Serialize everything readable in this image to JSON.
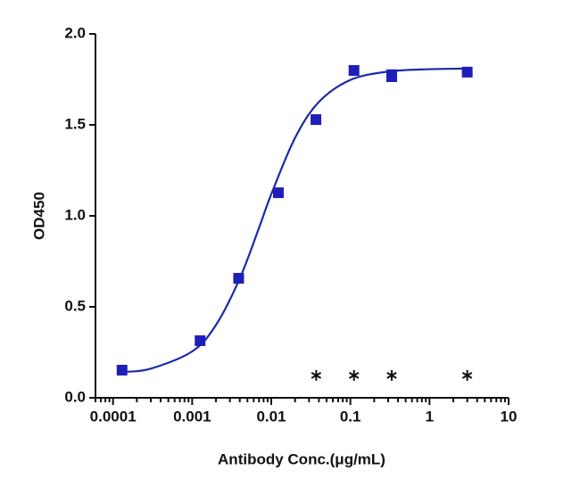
{
  "chart_data": {
    "type": "scatter",
    "xlabel": "Antibody Conc.(μg/mL)",
    "ylabel": "OD450",
    "xscale": "log",
    "xlim": [
      6e-05,
      10
    ],
    "xticks": [
      0.0001,
      0.001,
      0.01,
      0.1,
      1,
      10
    ],
    "ylim": [
      0,
      2
    ],
    "yticks": [
      {
        "value": 0,
        "label": "0.0"
      },
      {
        "value": 0.5,
        "label": "0.5"
      },
      {
        "value": 1,
        "label": "1.0"
      },
      {
        "value": 1.5,
        "label": "1.5"
      },
      {
        "value": 2,
        "label": "2.0"
      }
    ],
    "series": [
      {
        "color": "#1f1fb8",
        "marker": "square",
        "x": [
          0.00013,
          0.00126,
          0.00387,
          0.0123,
          0.0367,
          0.111,
          0.333,
          3.0
        ],
        "values": [
          0.152,
          0.314,
          0.657,
          1.127,
          1.529,
          1.799,
          1.77,
          1.79
        ],
        "errors": [
          null,
          null,
          null,
          null,
          null,
          null,
          0.03,
          null
        ]
      },
      {
        "color": "#111111",
        "marker": "asterisk",
        "x": [
          0.037,
          0.111,
          0.333,
          3.0
        ],
        "values": [
          0.123,
          0.123,
          0.123,
          0.123
        ]
      }
    ],
    "fit_curve": {
      "color": "#1c2aa8",
      "x": [
        0.00015,
        0.0003,
        0.001,
        0.002,
        0.004,
        0.007,
        0.01,
        0.02,
        0.04,
        0.1,
        0.3,
        1,
        3
      ],
      "values": [
        0.143,
        0.16,
        0.255,
        0.4,
        0.656,
        0.934,
        1.119,
        1.429,
        1.626,
        1.747,
        1.793,
        1.806,
        1.809
      ]
    }
  }
}
